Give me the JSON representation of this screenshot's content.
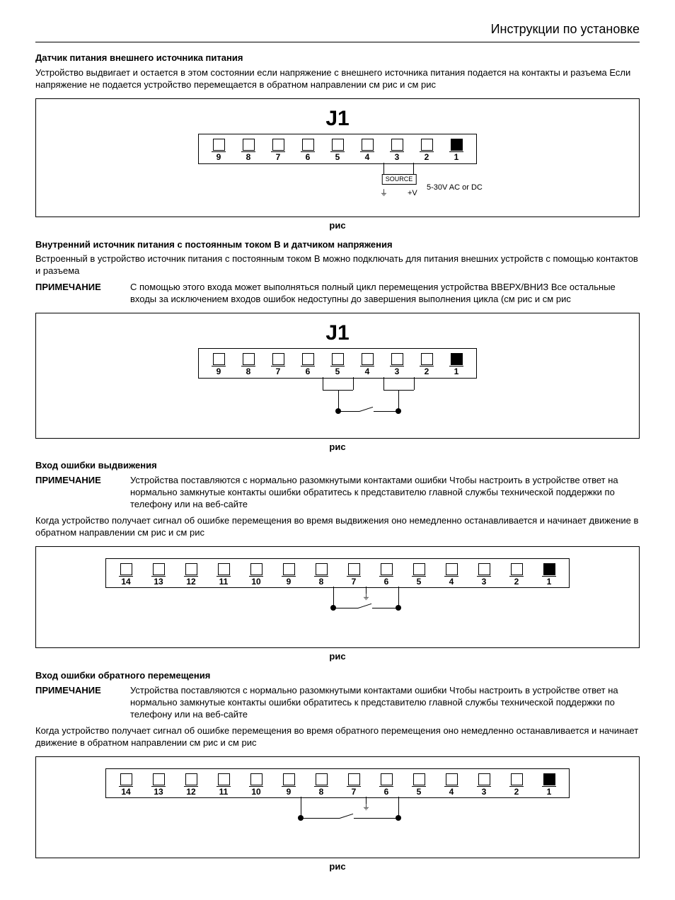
{
  "header_right": "Инструкции по установке",
  "sec1": {
    "title": "Датчик питания внешнего источника питания",
    "para": "Устройство выдвигает и остается в этом состоянии  если напряжение с внешнего источника питания подается на контакты   и   разъема        Если напряжение не подается  устройство перемещается в обратном направлении   см  рис          и см  рис"
  },
  "fig5": {
    "title": "J1",
    "pins": [
      "9",
      "8",
      "7",
      "6",
      "5",
      "4",
      "3",
      "2",
      "1"
    ],
    "source_label": "SOURCE",
    "vplus": "+V",
    "volt_text": "5-30V AC or DC",
    "caption": "рис"
  },
  "sec2": {
    "title": "Внутренний источник питания с постоянным током       В и датчиком напряжения",
    "para": "Встроенный в устройство источник питания с постоянным током       В можно подключать для питания внешних устройств с помощью контактов    и    разъема",
    "note_label": "ПРИМЕЧАНИЕ",
    "note_text": "С помощью этого входа может выполняться полный цикл перемещения устройства ВВЕРХ/ВНИЗ  Все остальные входы  за исключением входов ошибок  недоступны до завершения выполнения цикла (см  рис          и см  рис"
  },
  "fig6": {
    "title": "J1",
    "pins": [
      "9",
      "8",
      "7",
      "6",
      "5",
      "4",
      "3",
      "2",
      "1"
    ],
    "caption": "рис"
  },
  "sec3": {
    "title": "Вход ошибки выдвижения",
    "note_label": "ПРИМЕЧАНИЕ",
    "note_text": "Устройства поставляются с нормально разомкнутыми контактами ошибки  Чтобы настроить в устройстве ответ на нормально замкнутые контакты ошибки  обратитесь к представителю главной службы технической поддержки по телефону                                   или на веб-сайте",
    "para2": "Когда устройство получает сигнал об ошибке перемещения во время выдвижения  оно немедленно останавливается и начинает движение в обратном направлении   см  рис          и см  рис"
  },
  "fig7": {
    "pins": [
      "14",
      "13",
      "12",
      "11",
      "10",
      "9",
      "8",
      "7",
      "6",
      "5",
      "4",
      "3",
      "2",
      "1"
    ],
    "caption": "рис"
  },
  "sec4": {
    "title": "Вход ошибки обратного перемещения",
    "note_label": "ПРИМЕЧАНИЕ",
    "note_text": "Устройства поставляются с нормально разомкнутыми контактами ошибки  Чтобы настроить в устройстве ответ на нормально замкнутые контакты ошибки  обратитесь к представителю главной службы технической поддержки по телефону                                   или на веб-сайте",
    "para2": "Когда устройство получает сигнал об ошибке перемещения во время обратного перемещения  оно немедленно останавливается и начинает движение в обратном направлении   см  рис          и см  рис"
  },
  "fig8": {
    "pins": [
      "14",
      "13",
      "12",
      "11",
      "10",
      "9",
      "8",
      "7",
      "6",
      "5",
      "4",
      "3",
      "2",
      "1"
    ],
    "caption": "рис"
  },
  "colors": {
    "text": "#000000",
    "bg": "#ffffff",
    "border": "#000000"
  },
  "fonts": {
    "body_family": "Arial",
    "body_size_pt": 10,
    "header_size_pt": 14,
    "j1_size_pt": 22
  }
}
